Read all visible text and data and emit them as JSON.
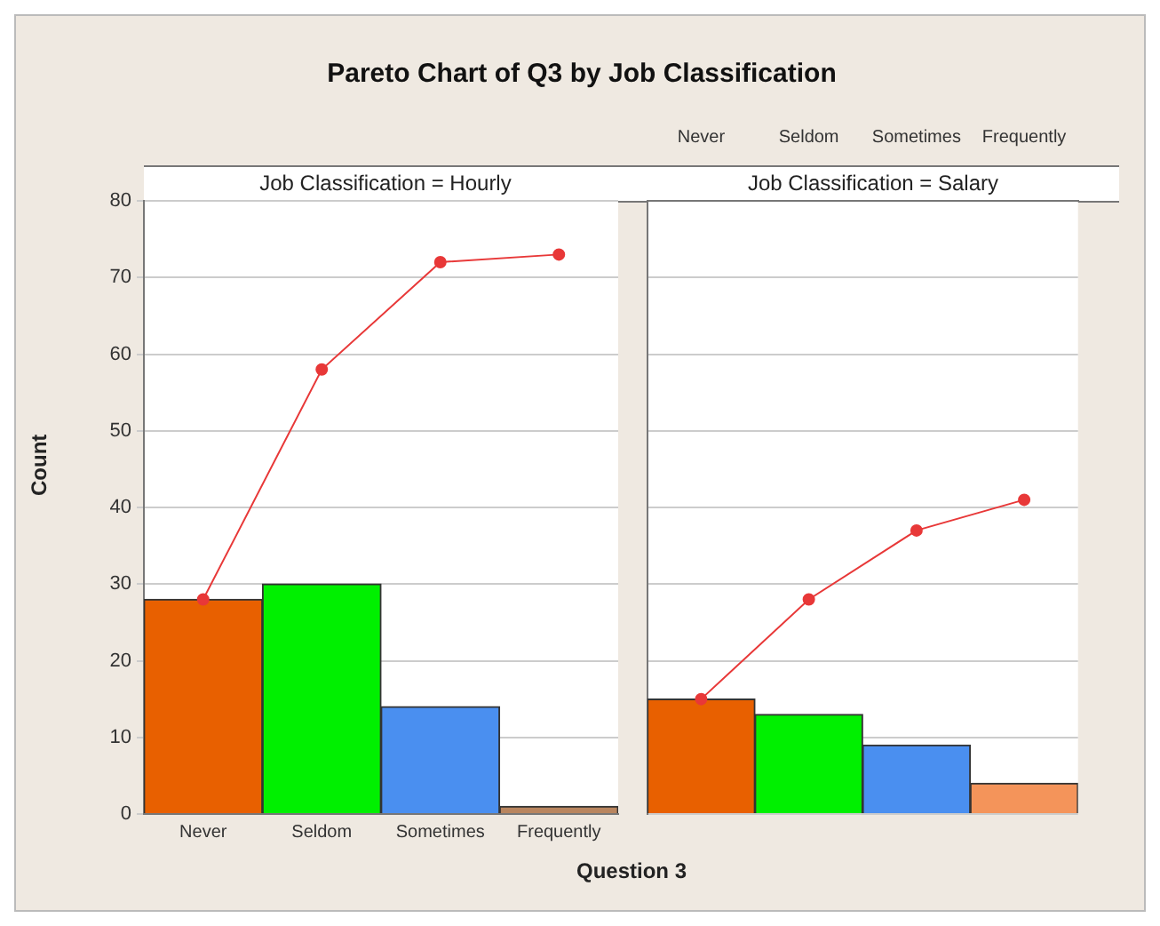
{
  "chart_data": [
    {
      "type": "bar",
      "title": "Pareto Chart of Q3 by Job Classification",
      "subtitle": "Job Classification = Hourly",
      "xlabel": "Question 3",
      "ylabel": "Count",
      "categories": [
        "Never",
        "Seldom",
        "Sometimes",
        "Frequently"
      ],
      "series": [
        {
          "colors": [
            "#e86000",
            "#00f000",
            "#4a8ff0",
            "#b9855f"
          ],
          "values": [
            28,
            30,
            14,
            1
          ]
        },
        {
          "type": "line",
          "color": "#e83838",
          "values": [
            28,
            58,
            72,
            73
          ]
        }
      ],
      "ylim": [
        0,
        80
      ],
      "yticks": [
        0,
        10,
        20,
        30,
        40,
        50,
        60,
        70,
        80
      ],
      "grid": "y",
      "marker": "circle"
    },
    {
      "type": "bar",
      "subtitle": "Job Classification = Salary",
      "categories": [
        "Never",
        "Seldom",
        "Sometimes",
        "Frequently"
      ],
      "series": [
        {
          "colors": [
            "#e86000",
            "#00f000",
            "#4a8ff0",
            "#f4945a"
          ],
          "values": [
            15,
            13,
            9,
            4
          ]
        },
        {
          "type": "line",
          "color": "#e83838",
          "values": [
            15,
            28,
            37,
            41
          ]
        }
      ],
      "ylim": [
        0,
        80
      ],
      "yticks": [
        0,
        10,
        20,
        30,
        40,
        50,
        60,
        70,
        80
      ],
      "grid": "y",
      "marker": "circle",
      "tick_labels": "x"
    }
  ]
}
